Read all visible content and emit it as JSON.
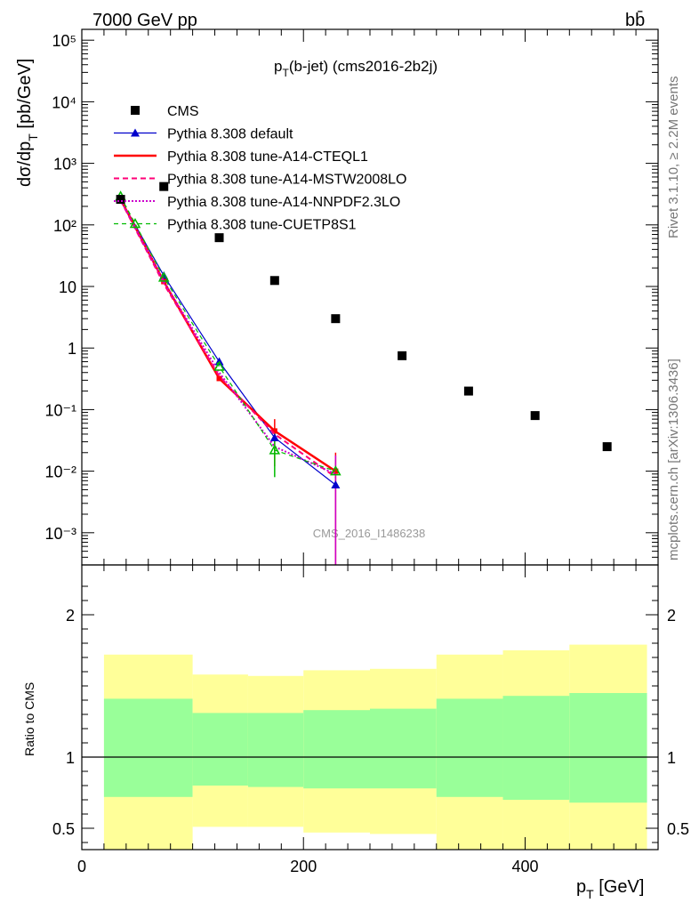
{
  "header": {
    "energy_label": "7000 GeV pp",
    "process_label": "bb̄"
  },
  "side_labels": {
    "rivet": "Rivet 3.1.10, ≥ 2.2M events",
    "mcplots": "mcplots.cern.ch [arXiv:1306.3436]"
  },
  "chart_data": [
    {
      "type": "scatter",
      "title": "p_T(b-jet) (cms2016-2b2j)",
      "title_main": "p",
      "title_sub": "T",
      "title_rest": "(b-jet) (cms2016-2b2j)",
      "ylabel_main": "dσ/dp",
      "ylabel_sub": "T",
      "ylabel_rest": " [pb/GeV]",
      "yscale": "log",
      "ylim": [
        0.0003,
        150000
      ],
      "xlim": [
        0,
        520
      ],
      "watermark": "CMS_2016_I1486238",
      "y_tick_labels": [
        "10⁵",
        "10⁴",
        "10³",
        "10²",
        "10",
        "1",
        "10⁻¹",
        "10⁻²",
        "10⁻³"
      ],
      "legend_position": "top-left",
      "series": [
        {
          "name": "CMS",
          "color": "#000000",
          "marker": "square",
          "x": [
            35,
            74,
            124,
            174,
            229,
            289,
            349,
            409,
            474
          ],
          "y": [
            260,
            420,
            62,
            12.5,
            3.0,
            0.75,
            0.2,
            0.08,
            0.025
          ]
        },
        {
          "name": "Pythia 8.308 default",
          "color": "#0000cc",
          "marker": "triangle",
          "x": [
            35,
            74,
            124,
            174,
            229
          ],
          "y": [
            260,
            15,
            0.6,
            0.035,
            0.006
          ]
        },
        {
          "name": "Pythia 8.308 tune-A14-CTEQL1",
          "color": "#ff0000",
          "marker": "square",
          "x": [
            35,
            74,
            124,
            174,
            229
          ],
          "y": [
            260,
            12,
            0.32,
            0.045,
            0.01
          ]
        },
        {
          "name": "Pythia 8.308 tune-A14-MSTW2008LO",
          "color": "#ff0077",
          "marker": "none",
          "x": [
            35,
            74,
            124,
            174,
            229
          ],
          "y": [
            250,
            11,
            0.35,
            0.04,
            0.008
          ]
        },
        {
          "name": "Pythia 8.308 tune-A14-NNPDF2.3LO",
          "color": "#cc00cc",
          "marker": "none",
          "x": [
            35,
            74,
            124,
            174,
            229
          ],
          "y": [
            255,
            12,
            0.4,
            0.025,
            0.009
          ]
        },
        {
          "name": "Pythia 8.308 tune-CUETP8S1",
          "color": "#00bb00",
          "marker": "open-triangle",
          "x": [
            35,
            74,
            124,
            174,
            229
          ],
          "y": [
            290,
            14,
            0.5,
            0.022,
            0.01
          ]
        }
      ]
    },
    {
      "type": "area",
      "ylabel": "Ratio to CMS",
      "xlabel_main": "p",
      "xlabel_sub": "T",
      "xlabel_rest": " [GeV]",
      "xlim": [
        0,
        520
      ],
      "ylim": [
        0.35,
        2.35
      ],
      "x_tick_labels": [
        "0",
        "200",
        "400"
      ],
      "y_tick_labels": [
        "2",
        "1",
        "0.5"
      ],
      "reference_line": 1,
      "bins": [
        {
          "x": [
            20,
            100
          ],
          "green": [
            0.72,
            1.41
          ],
          "yellow": [
            0.35,
            1.72
          ]
        },
        {
          "x": [
            100,
            150
          ],
          "green": [
            0.8,
            1.31
          ],
          "yellow": [
            0.51,
            1.58
          ]
        },
        {
          "x": [
            150,
            200
          ],
          "green": [
            0.79,
            1.31
          ],
          "yellow": [
            0.51,
            1.57
          ]
        },
        {
          "x": [
            200,
            260
          ],
          "green": [
            0.78,
            1.33
          ],
          "yellow": [
            0.47,
            1.61
          ]
        },
        {
          "x": [
            260,
            320
          ],
          "green": [
            0.78,
            1.34
          ],
          "yellow": [
            0.46,
            1.62
          ]
        },
        {
          "x": [
            320,
            380
          ],
          "green": [
            0.72,
            1.41
          ],
          "yellow": [
            0.35,
            1.72
          ]
        },
        {
          "x": [
            380,
            440
          ],
          "green": [
            0.7,
            1.43
          ],
          "yellow": [
            0.35,
            1.75
          ]
        },
        {
          "x": [
            440,
            510
          ],
          "green": [
            0.68,
            1.45
          ],
          "yellow": [
            0.35,
            1.79
          ]
        }
      ]
    }
  ]
}
